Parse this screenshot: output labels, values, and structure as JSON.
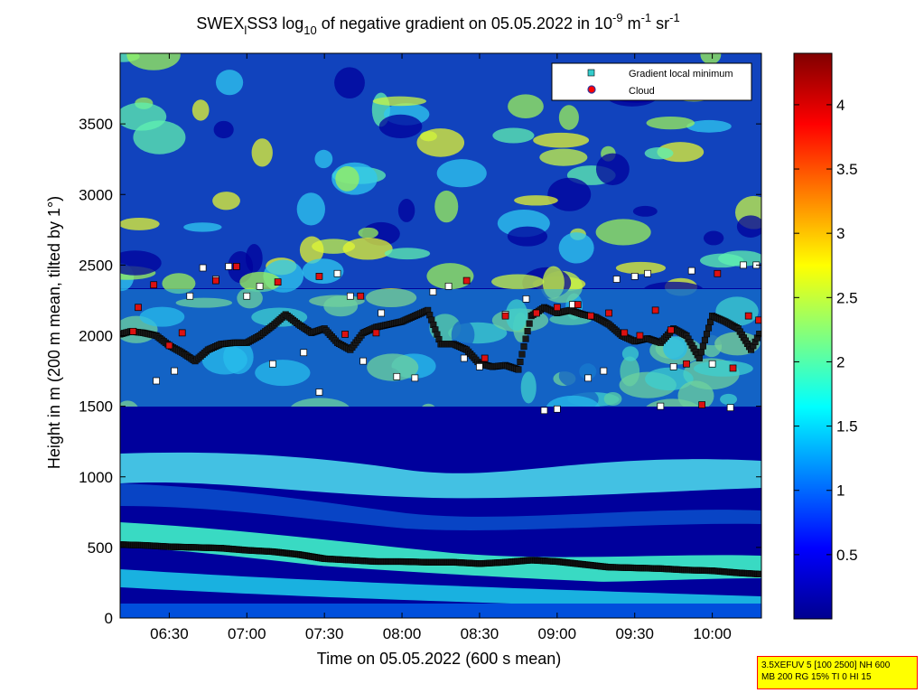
{
  "chart_data": {
    "type": "heatmap",
    "title": {
      "prefix": "SWEX",
      "sub_l": "l",
      "mid": "SS3 log",
      "sub_10": "10",
      "rest": " of negative gradient on 05.05.2022 in 10",
      "sup1": "-9",
      "unit_m": " m",
      "sup2": "-1",
      "unit_sr": " sr",
      "sup3": "-1"
    },
    "xlabel": "Time on 05.05.2022 (600 s mean)",
    "ylabel": "Height in m (200 m mean, tilted by 1°)",
    "x_ticks": [
      "06:30",
      "07:00",
      "07:30",
      "08:00",
      "08:30",
      "09:00",
      "09:30",
      "10:00"
    ],
    "x_tick_minutes": [
      390,
      420,
      450,
      480,
      510,
      540,
      570,
      600
    ],
    "xlim_minutes": [
      371,
      619
    ],
    "y_ticks": [
      "0",
      "500",
      "1000",
      "1500",
      "2000",
      "2500",
      "3000",
      "3500"
    ],
    "y_tick_values": [
      0,
      500,
      1000,
      1500,
      2000,
      2500,
      3000,
      3500
    ],
    "ylim": [
      0,
      4000
    ],
    "colorbar": {
      "ticks": [
        "0.5",
        "1",
        "1.5",
        "2",
        "2.5",
        "3",
        "3.5",
        "4"
      ],
      "tick_values": [
        0.5,
        1,
        1.5,
        2,
        2.5,
        3,
        3.5,
        4
      ],
      "range": [
        0,
        4.4
      ],
      "colormap": "jet"
    },
    "legend": {
      "position": "top-right",
      "entries": [
        {
          "label": "Gradient local minimum",
          "marker": "square",
          "color": "#33cccc"
        },
        {
          "label": "Cloud",
          "marker": "circle",
          "color": "#ff0000"
        }
      ]
    },
    "series": [
      {
        "name": "Gradient local minimum",
        "layer": "lower",
        "points": [
          [
            371,
            520
          ],
          [
            380,
            515
          ],
          [
            390,
            505
          ],
          [
            400,
            500
          ],
          [
            410,
            495
          ],
          [
            420,
            480
          ],
          [
            430,
            470
          ],
          [
            440,
            450
          ],
          [
            450,
            420
          ],
          [
            460,
            410
          ],
          [
            470,
            400
          ],
          [
            480,
            400
          ],
          [
            490,
            395
          ],
          [
            500,
            395
          ],
          [
            510,
            385
          ],
          [
            520,
            395
          ],
          [
            530,
            410
          ],
          [
            540,
            400
          ],
          [
            550,
            380
          ],
          [
            560,
            360
          ],
          [
            570,
            355
          ],
          [
            580,
            350
          ],
          [
            590,
            340
          ],
          [
            600,
            335
          ],
          [
            610,
            320
          ],
          [
            619,
            310
          ]
        ]
      },
      {
        "name": "Gradient local minimum",
        "layer": "middle",
        "points": [
          [
            371,
            2010
          ],
          [
            375,
            2030
          ],
          [
            380,
            2020
          ],
          [
            385,
            2000
          ],
          [
            390,
            1930
          ],
          [
            395,
            1880
          ],
          [
            400,
            1820
          ],
          [
            405,
            1900
          ],
          [
            410,
            1940
          ],
          [
            415,
            1950
          ],
          [
            420,
            1950
          ],
          [
            425,
            2000
          ],
          [
            430,
            2070
          ],
          [
            435,
            2150
          ],
          [
            440,
            2080
          ],
          [
            445,
            2020
          ],
          [
            450,
            2050
          ],
          [
            455,
            1950
          ],
          [
            460,
            1900
          ],
          [
            465,
            2020
          ],
          [
            470,
            2060
          ],
          [
            475,
            2080
          ],
          [
            480,
            2100
          ],
          [
            485,
            2140
          ],
          [
            490,
            2180
          ],
          [
            495,
            1940
          ],
          [
            500,
            1940
          ],
          [
            505,
            1900
          ],
          [
            510,
            1800
          ],
          [
            515,
            1780
          ],
          [
            520,
            1790
          ],
          [
            525,
            1760
          ],
          [
            530,
            2140
          ],
          [
            535,
            2200
          ],
          [
            540,
            2160
          ],
          [
            545,
            2180
          ],
          [
            550,
            2150
          ],
          [
            555,
            2130
          ],
          [
            560,
            2080
          ],
          [
            565,
            2000
          ],
          [
            570,
            1960
          ],
          [
            575,
            1980
          ],
          [
            580,
            1950
          ],
          [
            585,
            2050
          ],
          [
            590,
            2000
          ],
          [
            595,
            1840
          ],
          [
            600,
            2140
          ],
          [
            605,
            2100
          ],
          [
            610,
            2050
          ],
          [
            615,
            1900
          ],
          [
            619,
            2040
          ]
        ]
      },
      {
        "name": "Gradient local minimum",
        "layer": "scattered",
        "points": [
          [
            385,
            1680
          ],
          [
            392,
            1750
          ],
          [
            398,
            2280
          ],
          [
            403,
            2480
          ],
          [
            408,
            2400
          ],
          [
            413,
            2490
          ],
          [
            420,
            2280
          ],
          [
            425,
            2350
          ],
          [
            430,
            1800
          ],
          [
            442,
            1880
          ],
          [
            448,
            1600
          ],
          [
            455,
            2440
          ],
          [
            460,
            2280
          ],
          [
            465,
            1820
          ],
          [
            472,
            2160
          ],
          [
            478,
            1710
          ],
          [
            485,
            1700
          ],
          [
            492,
            2310
          ],
          [
            498,
            2350
          ],
          [
            504,
            1840
          ],
          [
            510,
            1780
          ],
          [
            520,
            2150
          ],
          [
            528,
            2260
          ],
          [
            535,
            1470
          ],
          [
            540,
            1480
          ],
          [
            546,
            2220
          ],
          [
            552,
            1700
          ],
          [
            558,
            1750
          ],
          [
            563,
            2400
          ],
          [
            570,
            2420
          ],
          [
            575,
            2440
          ],
          [
            580,
            1500
          ],
          [
            585,
            1780
          ],
          [
            592,
            2460
          ],
          [
            600,
            1800
          ],
          [
            607,
            1490
          ],
          [
            612,
            2500
          ],
          [
            617,
            2500
          ]
        ]
      },
      {
        "name": "Cloud",
        "points": [
          [
            376,
            2030
          ],
          [
            378,
            2200
          ],
          [
            384,
            2360
          ],
          [
            390,
            1930
          ],
          [
            395,
            2020
          ],
          [
            408,
            2390
          ],
          [
            416,
            2490
          ],
          [
            432,
            2380
          ],
          [
            448,
            2420
          ],
          [
            458,
            2010
          ],
          [
            464,
            2280
          ],
          [
            470,
            2020
          ],
          [
            505,
            2390
          ],
          [
            512,
            1840
          ],
          [
            520,
            2140
          ],
          [
            532,
            2160
          ],
          [
            540,
            2200
          ],
          [
            548,
            2220
          ],
          [
            553,
            2140
          ],
          [
            560,
            2160
          ],
          [
            566,
            2020
          ],
          [
            572,
            2000
          ],
          [
            578,
            2180
          ],
          [
            584,
            2040
          ],
          [
            590,
            1800
          ],
          [
            596,
            1510
          ],
          [
            602,
            2440
          ],
          [
            608,
            1770
          ],
          [
            614,
            2140
          ],
          [
            618,
            2110
          ]
        ]
      }
    ]
  },
  "info_box": {
    "line1": "3.5XEFUV 5 [100 2500] NH 600",
    "line2": "MB 200 RG 15% TI 0 HI 15"
  }
}
